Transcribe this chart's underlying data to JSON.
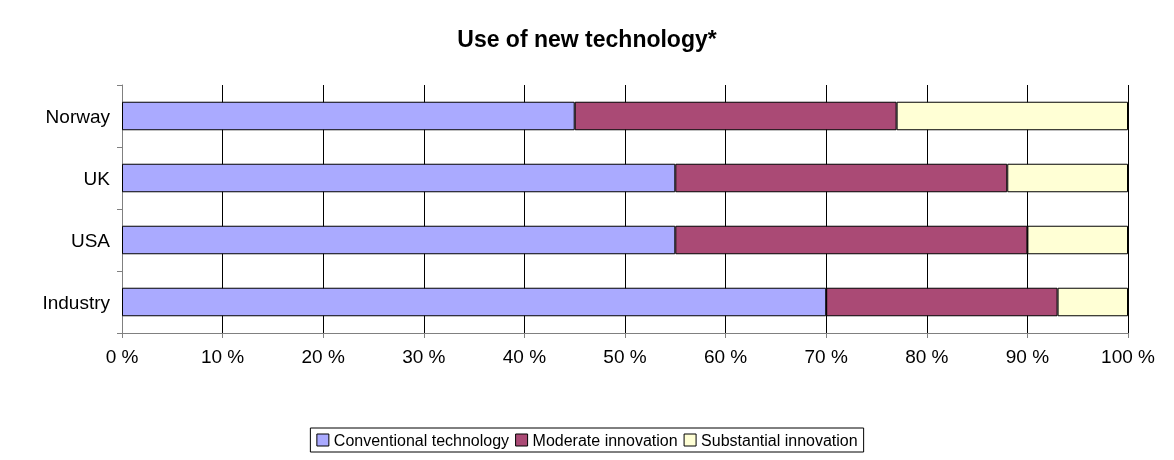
{
  "chart_data": {
    "type": "bar",
    "title": "Use of new technology*",
    "orientation": "horizontal",
    "stacked": true,
    "categories": [
      "Norway",
      "UK",
      "USA",
      "Industry"
    ],
    "series": [
      {
        "name": "Conventional technology",
        "color": "#aaaaff",
        "values": [
          45,
          55,
          55,
          70
        ]
      },
      {
        "name": "Moderate innovation",
        "color": "#aa4a75",
        "values": [
          32,
          33,
          35,
          23
        ]
      },
      {
        "name": "Substantial innovation",
        "color": "#ffffd5",
        "values": [
          23,
          12,
          10,
          7
        ]
      }
    ],
    "xlim": [
      0,
      100
    ],
    "xticks": [
      {
        "value": 0,
        "label": "0 %"
      },
      {
        "value": 10,
        "label": "10 %"
      },
      {
        "value": 20,
        "label": "20 %"
      },
      {
        "value": 30,
        "label": "30 %"
      },
      {
        "value": 40,
        "label": "40 %"
      },
      {
        "value": 50,
        "label": "50 %"
      },
      {
        "value": 60,
        "label": "60 %"
      },
      {
        "value": 70,
        "label": "70 %"
      },
      {
        "value": 80,
        "label": "80 %"
      },
      {
        "value": 90,
        "label": "90 %"
      },
      {
        "value": 100,
        "label": "100 %"
      }
    ],
    "grid": "x",
    "legend": "bottom"
  }
}
